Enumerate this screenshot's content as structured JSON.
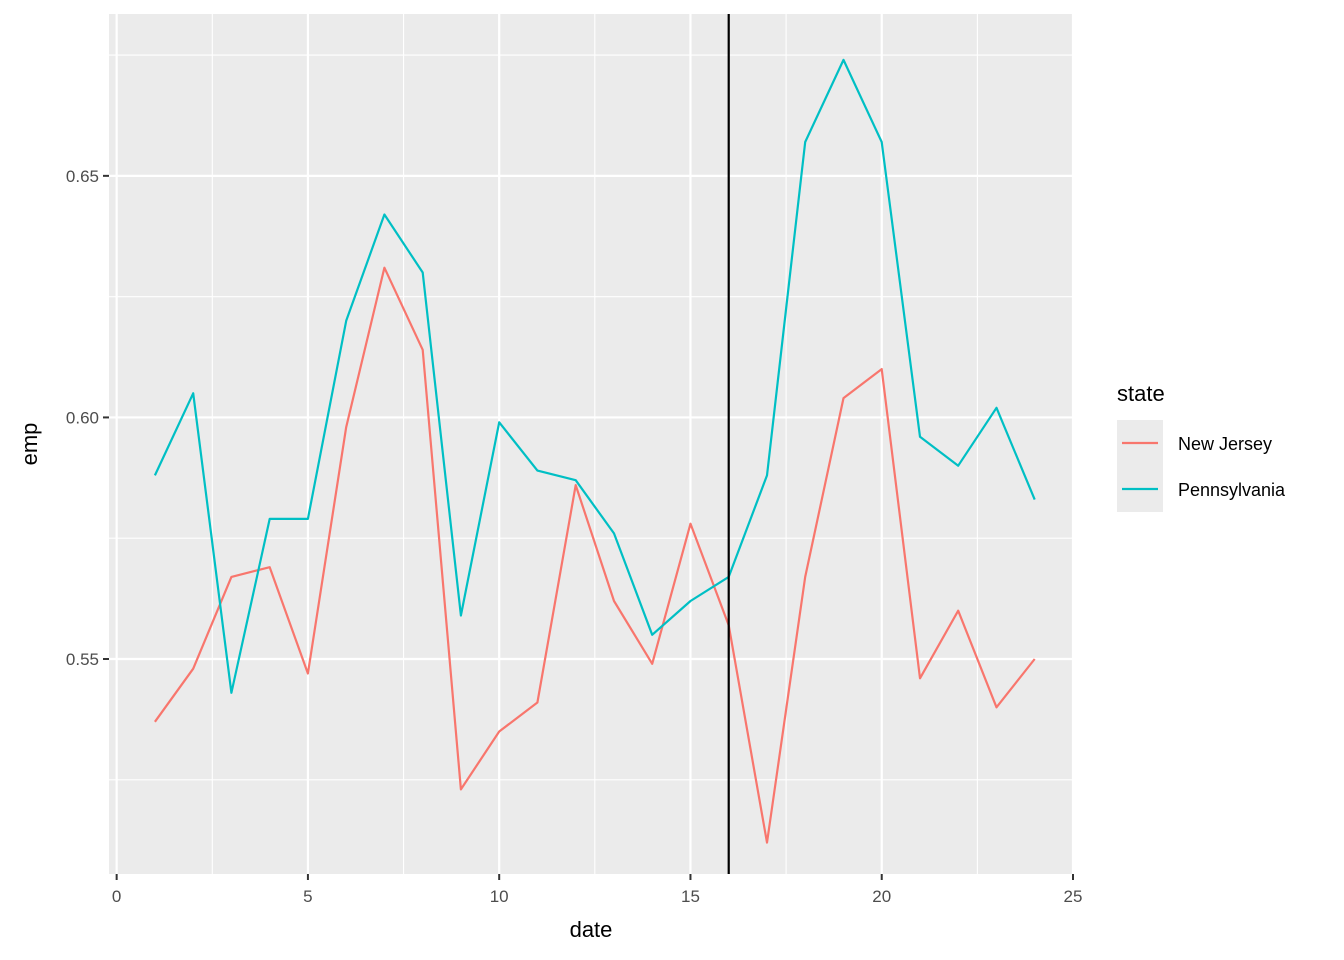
{
  "chart_data": {
    "type": "line",
    "xlabel": "date",
    "ylabel": "emp",
    "xlim": [
      -0.2,
      25.0
    ],
    "ylim": [
      0.5055,
      0.6835
    ],
    "x_ticks": [
      0,
      5,
      10,
      15,
      20,
      25
    ],
    "x_tick_labels": [
      "0",
      "5",
      "10",
      "15",
      "20",
      "25"
    ],
    "y_ticks": [
      0.55,
      0.6,
      0.65
    ],
    "y_tick_labels": [
      "0.55",
      "0.60",
      "0.65"
    ],
    "grid": true,
    "legend": {
      "title": "state",
      "position": "right"
    },
    "vline": {
      "x": 16,
      "color": "#000000"
    },
    "x": [
      1,
      2,
      3,
      4,
      5,
      6,
      7,
      8,
      9,
      10,
      11,
      12,
      13,
      14,
      15,
      16,
      17,
      18,
      19,
      20,
      21,
      22,
      23,
      24
    ],
    "series": [
      {
        "name": "New Jersey",
        "color": "#F8766D",
        "values": [
          0.537,
          0.548,
          0.567,
          0.569,
          0.547,
          0.598,
          0.631,
          0.614,
          0.523,
          0.535,
          0.541,
          0.586,
          0.562,
          0.549,
          0.578,
          0.557,
          0.512,
          0.567,
          0.604,
          0.61,
          0.546,
          0.56,
          0.54,
          0.55
        ]
      },
      {
        "name": "Pennsylvania",
        "color": "#00BFC4",
        "values": [
          0.588,
          0.605,
          0.543,
          0.579,
          0.579,
          0.62,
          0.642,
          0.63,
          0.559,
          0.599,
          0.589,
          0.587,
          0.576,
          0.555,
          0.562,
          0.567,
          0.588,
          0.657,
          0.674,
          0.657,
          0.596,
          0.59,
          0.602,
          0.583
        ]
      }
    ]
  }
}
